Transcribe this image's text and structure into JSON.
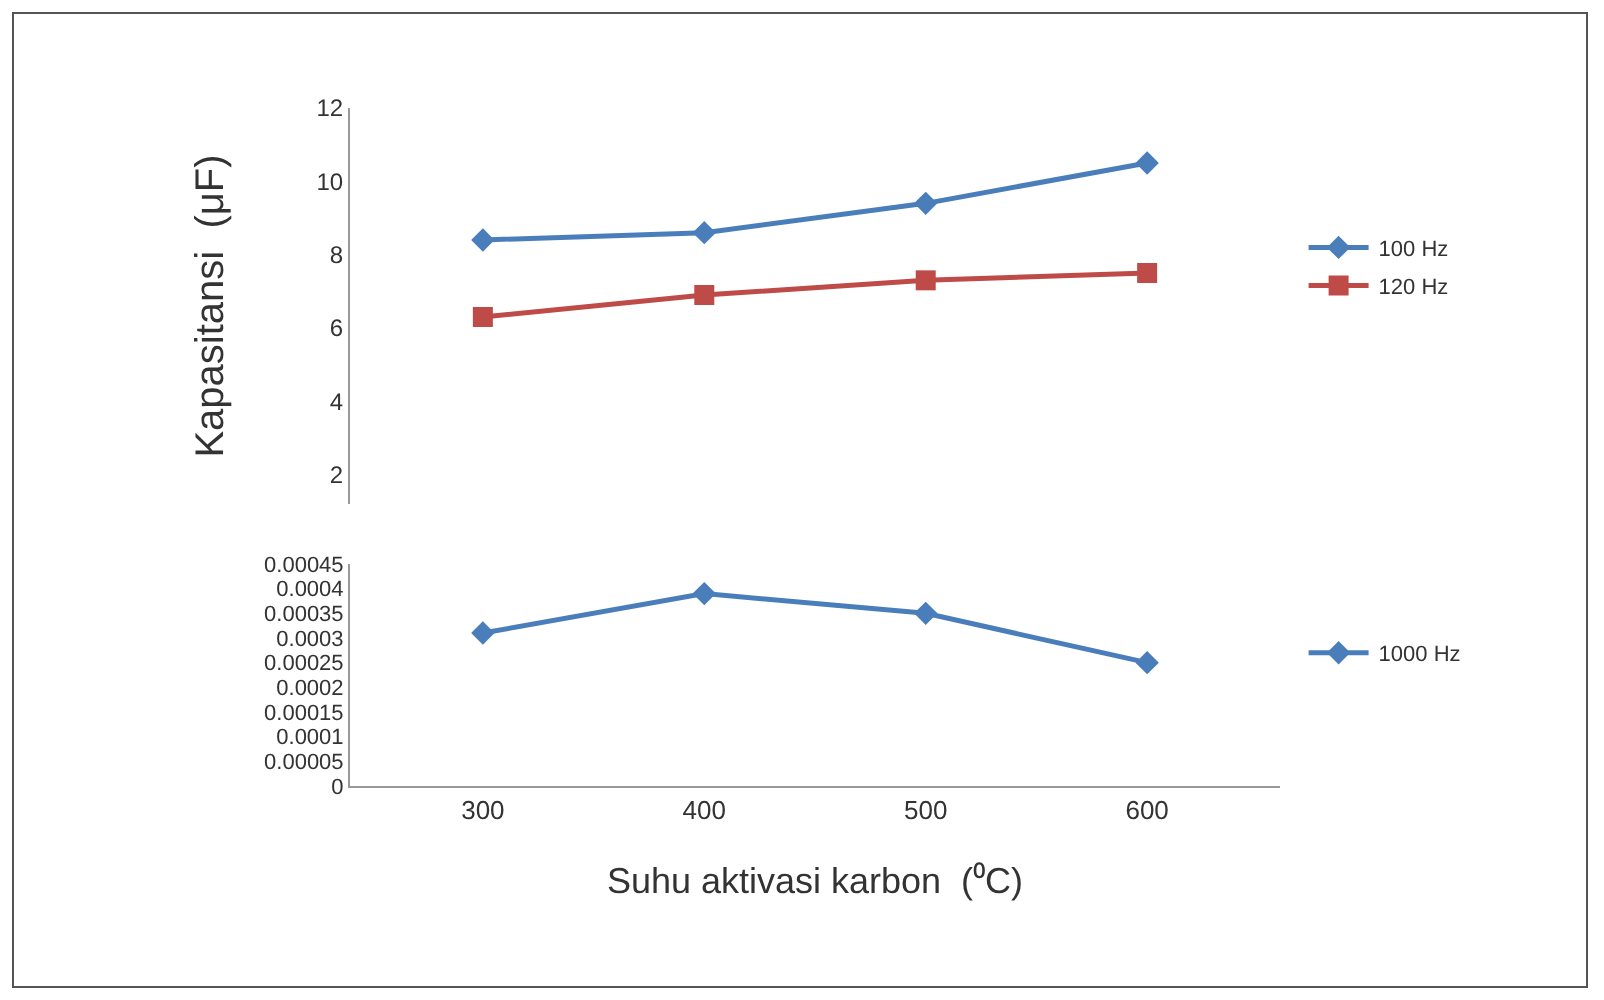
{
  "chart_data": [
    {
      "type": "line",
      "ylabel": "Kapasitansi  (μF)",
      "categories": [
        "300",
        "400",
        "500",
        "600"
      ],
      "ylim": [
        1.2,
        12
      ],
      "yticks": [
        2,
        4,
        6,
        8,
        10,
        12
      ],
      "grid": false,
      "legend": "right",
      "tick_labels": "y",
      "series": [
        {
          "name": "100 Hz",
          "color": "#4a7ebb",
          "marker": "diamond",
          "values": [
            8.4,
            8.6,
            9.4,
            10.5
          ]
        },
        {
          "name": "120 Hz",
          "color": "#be4b48",
          "marker": "square",
          "values": [
            6.3,
            6.9,
            7.3,
            7.5
          ]
        }
      ]
    },
    {
      "type": "line",
      "xlabel": "Suhu aktivasi karbon  (⁰C)",
      "categories": [
        "300",
        "400",
        "500",
        "600"
      ],
      "ylim": [
        0,
        0.00045
      ],
      "yticks": [
        0,
        {
          "value": 5e-05,
          "label": "0.00005"
        },
        0.0001,
        0.00015,
        0.0002,
        0.00025,
        0.0003,
        0.00035,
        0.0004,
        0.00045
      ],
      "grid": false,
      "legend": "right",
      "series": [
        {
          "name": "1000 Hz",
          "color": "#4a7ebb",
          "marker": "diamond",
          "values": [
            0.00031,
            0.00039,
            0.00035,
            0.00025
          ]
        }
      ]
    }
  ]
}
